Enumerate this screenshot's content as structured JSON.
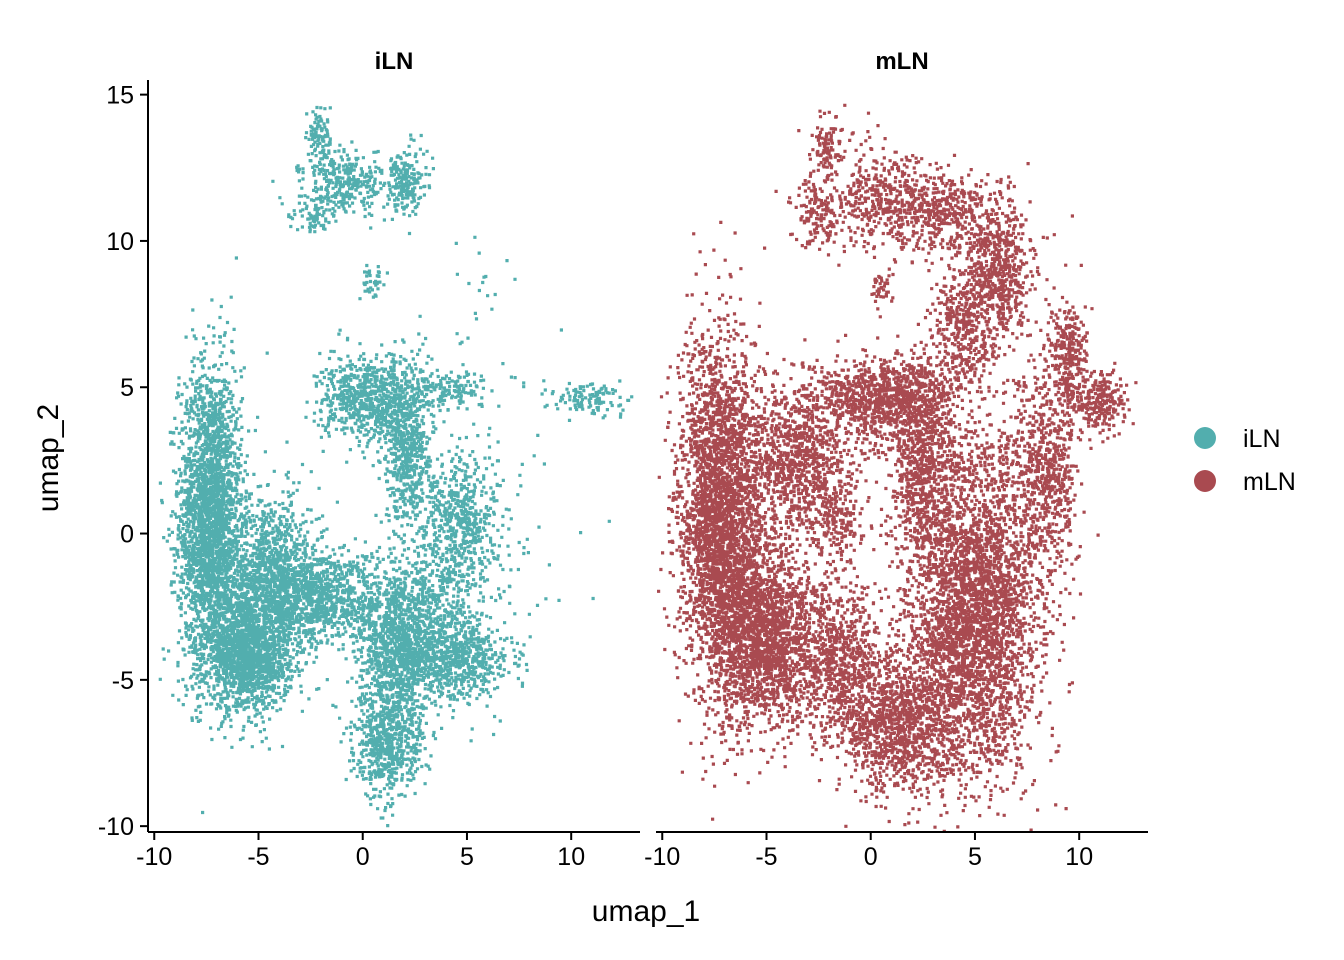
{
  "chart_data": {
    "type": "scatter",
    "xlabel": "umap_1",
    "ylabel": "umap_2",
    "xlim": [
      -10.3,
      13.3
    ],
    "ylim": [
      -10.2,
      15.5
    ],
    "x_ticks": [
      -10,
      -5,
      0,
      5,
      10
    ],
    "x_tick_labels": [
      "-10",
      "-5",
      "0",
      "5",
      "10"
    ],
    "y_ticks": [
      -10,
      -5,
      0,
      5,
      10,
      15
    ],
    "y_tick_labels": [
      "-10",
      "-5",
      "0",
      "5",
      "10",
      "15"
    ],
    "grid": false,
    "legend_position": "right",
    "legend": [
      {
        "label": "iLN",
        "color": "#52AEAE"
      },
      {
        "label": "mLN",
        "color": "#A94A50"
      }
    ],
    "panels": [
      {
        "title": "iLN",
        "color": "#52AEAE",
        "clusters": [
          {
            "cx": -7.3,
            "cy": 0.5,
            "sx": 0.75,
            "sy": 2.6,
            "n": 2600
          },
          {
            "cx": -5.5,
            "cy": -4.2,
            "sx": 1.0,
            "sy": 0.9,
            "n": 1500
          },
          {
            "cx": -4.5,
            "cy": -1.5,
            "sx": 1.2,
            "sy": 1.4,
            "n": 1200
          },
          {
            "cx": -2.0,
            "cy": -2.2,
            "sx": 1.5,
            "sy": 0.8,
            "n": 900
          },
          {
            "cx": 0.2,
            "cy": 4.6,
            "sx": 1.1,
            "sy": 0.7,
            "n": 700
          },
          {
            "cx": 2.2,
            "cy": 3.0,
            "sx": 0.6,
            "sy": 1.4,
            "n": 600
          },
          {
            "cx": 1.8,
            "cy": -4.0,
            "sx": 1.0,
            "sy": 1.2,
            "n": 1200
          },
          {
            "cx": 1.2,
            "cy": -7.2,
            "sx": 0.8,
            "sy": 0.9,
            "n": 600
          },
          {
            "cx": 4.8,
            "cy": 0.5,
            "sx": 0.9,
            "sy": 1.2,
            "n": 500
          },
          {
            "cx": 4.7,
            "cy": -4.3,
            "sx": 1.2,
            "sy": 0.7,
            "n": 600
          },
          {
            "cx": 3.5,
            "cy": -2.0,
            "sx": 1.4,
            "sy": 1.2,
            "n": 400
          },
          {
            "cx": -0.8,
            "cy": 12.0,
            "sx": 1.0,
            "sy": 0.5,
            "n": 300
          },
          {
            "cx": -2.1,
            "cy": 13.5,
            "sx": 0.3,
            "sy": 0.5,
            "n": 100
          },
          {
            "cx": 2.0,
            "cy": 12.0,
            "sx": 0.5,
            "sy": 0.6,
            "n": 200
          },
          {
            "cx": -2.3,
            "cy": 10.9,
            "sx": 0.6,
            "sy": 0.3,
            "n": 80
          },
          {
            "cx": 0.5,
            "cy": 8.6,
            "sx": 0.3,
            "sy": 0.3,
            "n": 40
          },
          {
            "cx": 4.0,
            "cy": 5.0,
            "sx": 1.0,
            "sy": 0.3,
            "n": 150
          },
          {
            "cx": 11.0,
            "cy": 4.6,
            "sx": 0.9,
            "sy": 0.3,
            "n": 120
          },
          {
            "cx": 7.5,
            "cy": 0.5,
            "sx": 1.8,
            "sy": 2.5,
            "n": 40
          },
          {
            "cx": 5.5,
            "cy": 7.0,
            "sx": 1.0,
            "sy": 1.8,
            "n": 30
          }
        ]
      },
      {
        "title": "mLN",
        "color": "#A94A50",
        "clusters": [
          {
            "cx": -7.2,
            "cy": 0.5,
            "sx": 1.0,
            "sy": 3.0,
            "n": 3000
          },
          {
            "cx": -5.0,
            "cy": -3.5,
            "sx": 1.2,
            "sy": 1.5,
            "n": 1800
          },
          {
            "cx": -3.5,
            "cy": 2.5,
            "sx": 1.3,
            "sy": 1.5,
            "n": 1000
          },
          {
            "cx": 0.5,
            "cy": 4.5,
            "sx": 1.5,
            "sy": 0.7,
            "n": 900
          },
          {
            "cx": 2.5,
            "cy": 2.5,
            "sx": 0.8,
            "sy": 1.8,
            "n": 800
          },
          {
            "cx": 5.0,
            "cy": -2.5,
            "sx": 1.6,
            "sy": 2.8,
            "n": 3500
          },
          {
            "cx": 1.5,
            "cy": -6.5,
            "sx": 1.5,
            "sy": 1.2,
            "n": 1200
          },
          {
            "cx": -1.5,
            "cy": -4.5,
            "sx": 1.0,
            "sy": 1.3,
            "n": 700
          },
          {
            "cx": 6.2,
            "cy": 9.0,
            "sx": 0.8,
            "sy": 1.2,
            "n": 600
          },
          {
            "cx": 4.5,
            "cy": 7.0,
            "sx": 0.8,
            "sy": 1.2,
            "n": 400
          },
          {
            "cx": 9.5,
            "cy": 6.0,
            "sx": 0.5,
            "sy": 1.0,
            "n": 300
          },
          {
            "cx": 11.0,
            "cy": 4.5,
            "sx": 0.7,
            "sy": 0.5,
            "n": 250
          },
          {
            "cx": 8.5,
            "cy": 1.5,
            "sx": 0.7,
            "sy": 1.5,
            "n": 400
          },
          {
            "cx": 0.5,
            "cy": 11.5,
            "sx": 1.2,
            "sy": 0.9,
            "n": 400
          },
          {
            "cx": 3.5,
            "cy": 11.0,
            "sx": 1.2,
            "sy": 0.7,
            "n": 400
          },
          {
            "cx": -2.0,
            "cy": 13.2,
            "sx": 0.4,
            "sy": 0.6,
            "n": 100
          },
          {
            "cx": -2.5,
            "cy": 11.0,
            "sx": 0.6,
            "sy": 0.6,
            "n": 150
          },
          {
            "cx": 0.5,
            "cy": 8.4,
            "sx": 0.3,
            "sy": 0.3,
            "n": 40
          },
          {
            "cx": -1.5,
            "cy": 0.5,
            "sx": 0.6,
            "sy": 0.8,
            "n": 150
          },
          {
            "cx": 8.0,
            "cy": 3.5,
            "sx": 1.0,
            "sy": 1.5,
            "n": 200
          }
        ]
      }
    ]
  }
}
